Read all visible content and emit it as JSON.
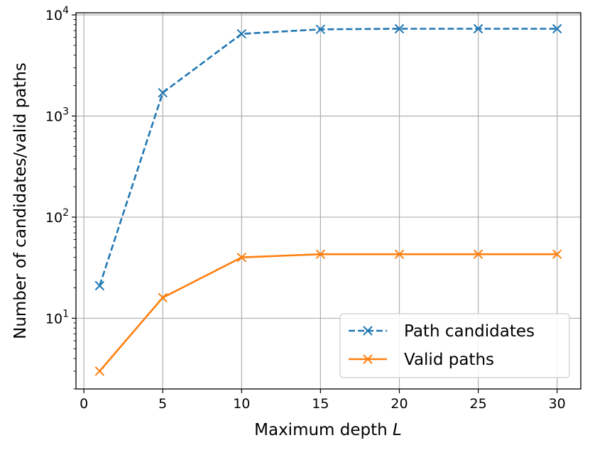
{
  "chart_data": {
    "type": "line",
    "xlabel": "Maximum depth",
    "xlabel_var": "L",
    "ylabel": "Number of candidates/valid paths",
    "xlim": [
      -0.5,
      31.5
    ],
    "ylim": [
      2.0,
      10500
    ],
    "yscale": "log",
    "grid": true,
    "legend_position": "lower-right",
    "x": [
      1,
      5,
      10,
      15,
      20,
      25,
      30
    ],
    "xticks": [
      0,
      5,
      10,
      15,
      20,
      25,
      30
    ],
    "yticks": [
      {
        "value": 10,
        "base": "10",
        "exp": "1"
      },
      {
        "value": 100,
        "base": "10",
        "exp": "2"
      },
      {
        "value": 1000,
        "base": "10",
        "exp": "3"
      },
      {
        "value": 10000,
        "base": "10",
        "exp": "4"
      }
    ],
    "series": [
      {
        "name": "Path candidates",
        "color": "#1f77b4",
        "dash": "dashed",
        "marker": "x",
        "values": [
          21,
          1700,
          6500,
          7200,
          7300,
          7300,
          7300
        ]
      },
      {
        "name": "Valid paths",
        "color": "#ff7f0e",
        "dash": "solid",
        "marker": "x",
        "values": [
          3,
          16,
          40,
          43,
          43,
          43,
          43
        ]
      }
    ]
  }
}
